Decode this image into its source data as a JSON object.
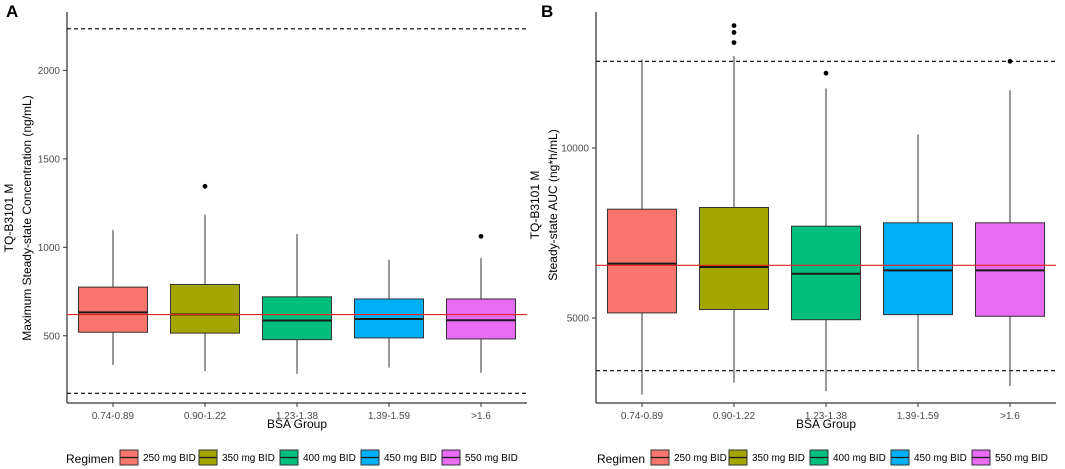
{
  "legend": {
    "title": "Regimen",
    "items": [
      {
        "label": "250 mg BID",
        "color": "#F8766D"
      },
      {
        "label": "350 mg BID",
        "color": "#A3A500"
      },
      {
        "label": "400 mg BID",
        "color": "#00BF7D"
      },
      {
        "label": "450 mg BID",
        "color": "#00B0F6"
      },
      {
        "label": "550 mg BID",
        "color": "#E76BF3"
      }
    ]
  },
  "chart_data": [
    {
      "type": "box",
      "panel_label": "A",
      "title": "",
      "xlabel": "BSA Group",
      "ylabel_line1": "TQ-B3101 M",
      "ylabel_line2": "Maximum Steady-state Concentration (ng/mL)",
      "ylim": [
        120,
        2330
      ],
      "yticks": [
        500,
        1000,
        1500,
        2000
      ],
      "categories": [
        "0.74-0.89",
        "0.90-1.22",
        "1.23-1.38",
        "1.39-1.59",
        ">1.6"
      ],
      "boxes": [
        {
          "category": "0.74-0.89",
          "regimen": "250 mg BID",
          "whisker_low": 335,
          "q1": 520,
          "median": 632,
          "q3": 775,
          "whisker_high": 1098,
          "outliers": []
        },
        {
          "category": "0.90-1.22",
          "regimen": "350 mg BID",
          "whisker_low": 300,
          "q1": 515,
          "median": 620,
          "q3": 790,
          "whisker_high": 1185,
          "outliers": [
            1345
          ]
        },
        {
          "category": "1.23-1.38",
          "regimen": "400 mg BID",
          "whisker_low": 285,
          "q1": 478,
          "median": 586,
          "q3": 720,
          "whisker_high": 1075,
          "outliers": []
        },
        {
          "category": "1.39-1.59",
          "regimen": "450 mg BID",
          "whisker_low": 320,
          "q1": 488,
          "median": 595,
          "q3": 708,
          "whisker_high": 930,
          "outliers": []
        },
        {
          "category": ">1.6",
          "regimen": "550 mg BID",
          "whisker_low": 290,
          "q1": 482,
          "median": 588,
          "q3": 708,
          "whisker_high": 940,
          "outliers": [
            1062
          ]
        }
      ],
      "reference_line": {
        "value": 620,
        "color": "#E8211F"
      },
      "dashed_lines": [
        2235,
        175
      ]
    },
    {
      "type": "box",
      "panel_label": "B",
      "title": "",
      "xlabel": "BSA Group",
      "ylabel_line1": "TQ-B3101 M",
      "ylabel_line2": "Steady-state AUC (ng*h/mL)",
      "ylim": [
        2500,
        14000
      ],
      "yticks": [
        5000,
        10000
      ],
      "categories": [
        "0.74-0.89",
        "0.90-1.22",
        "1.23-1.38",
        "1.39-1.59",
        ">1.6"
      ],
      "boxes": [
        {
          "category": "0.74-0.89",
          "regimen": "250 mg BID",
          "whisker_low": 2750,
          "q1": 5150,
          "median": 6600,
          "q3": 8200,
          "whisker_high": 12600,
          "outliers": []
        },
        {
          "category": "0.90-1.22",
          "regimen": "350 mg BID",
          "whisker_low": 3100,
          "q1": 5250,
          "median": 6500,
          "q3": 8250,
          "whisker_high": 12700,
          "outliers": [
            13600,
            13400,
            13100
          ]
        },
        {
          "category": "1.23-1.38",
          "regimen": "400 mg BID",
          "whisker_low": 2850,
          "q1": 4950,
          "median": 6300,
          "q3": 7700,
          "whisker_high": 11750,
          "outliers": [
            12200
          ]
        },
        {
          "category": "1.39-1.59",
          "regimen": "450 mg BID",
          "whisker_low": 3450,
          "q1": 5100,
          "median": 6400,
          "q3": 7800,
          "whisker_high": 10400,
          "outliers": []
        },
        {
          "category": ">1.6",
          "regimen": "550 mg BID",
          "whisker_low": 3000,
          "q1": 5050,
          "median": 6400,
          "q3": 7800,
          "whisker_high": 11700,
          "outliers": [
            12550
          ]
        }
      ],
      "reference_line": {
        "value": 6550,
        "color": "#E8211F"
      },
      "dashed_lines": [
        12550,
        3450
      ]
    }
  ]
}
